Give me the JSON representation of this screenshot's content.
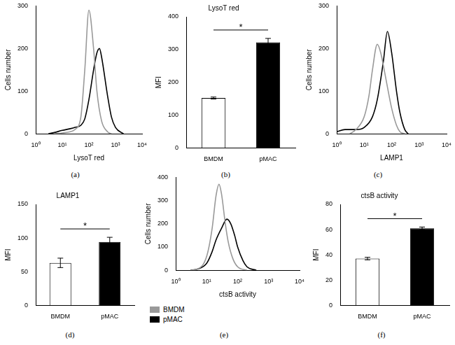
{
  "chart_data": [
    {
      "type": "line",
      "caption": "(a)",
      "x_label": "LysoT red",
      "y_label": "Cells number",
      "log": "x",
      "grid": false,
      "xlim": [
        1,
        10000
      ],
      "xticks": [
        {
          "value": 1,
          "label": "10⁰"
        },
        {
          "value": 10,
          "label": "10¹"
        },
        {
          "value": 100,
          "label": "10²"
        },
        {
          "value": 1000,
          "label": "10³"
        },
        {
          "value": 10000,
          "label": "10⁴"
        }
      ],
      "ylim": [
        0,
        300
      ],
      "yticks": [
        0,
        100,
        200,
        300
      ],
      "series": [
        {
          "name": "BMDM",
          "color": "#999999",
          "x": [
            5,
            10,
            20,
            30,
            50,
            70,
            100,
            150,
            200,
            300,
            500,
            700
          ],
          "values": [
            0,
            2,
            5,
            10,
            40,
            150,
            290,
            200,
            100,
            30,
            5,
            0
          ]
        },
        {
          "name": "pMAC",
          "color": "#000000",
          "x": [
            3,
            5,
            10,
            20,
            30,
            50,
            70,
            100,
            150,
            200,
            250,
            300,
            500,
            700,
            1000,
            2000
          ],
          "values": [
            0,
            3,
            8,
            12,
            15,
            20,
            35,
            80,
            150,
            190,
            200,
            180,
            90,
            40,
            15,
            0
          ]
        }
      ]
    },
    {
      "type": "bar",
      "caption": "(b)",
      "title": "LysoT red",
      "y_label": "MFI",
      "grid": false,
      "categories": [
        "BMDM",
        "pMAC"
      ],
      "values": [
        152,
        322
      ],
      "errors": [
        3,
        12
      ],
      "colors": [
        "#ffffff",
        "#000000"
      ],
      "ylim": [
        0,
        400
      ],
      "yticks": [
        0,
        100,
        200,
        300,
        400
      ],
      "annotations": [
        {
          "text": "*"
        }
      ]
    },
    {
      "type": "line",
      "caption": "(c)",
      "x_label": "LAMP1",
      "y_label": "Cells number",
      "log": "x",
      "grid": false,
      "xlim": [
        1,
        10000
      ],
      "xticks": [
        {
          "value": 1,
          "label": "10⁰"
        },
        {
          "value": 10,
          "label": "10¹"
        },
        {
          "value": 100,
          "label": "10²"
        },
        {
          "value": 1000,
          "label": "10³"
        },
        {
          "value": 10000,
          "label": "10⁴"
        }
      ],
      "ylim": [
        0,
        300
      ],
      "yticks": [
        0,
        100,
        200,
        300
      ],
      "series": [
        {
          "name": "BMDM",
          "color": "#999999",
          "x": [
            3,
            5,
            10,
            15,
            20,
            30,
            40,
            50,
            70,
            100,
            150,
            200,
            300
          ],
          "values": [
            0,
            10,
            40,
            90,
            150,
            210,
            190,
            160,
            110,
            60,
            20,
            5,
            0
          ]
        },
        {
          "name": "pMAC",
          "color": "#000000",
          "x": [
            1,
            2,
            5,
            10,
            20,
            30,
            50,
            70,
            100,
            150,
            200,
            300,
            400
          ],
          "values": [
            5,
            10,
            10,
            15,
            40,
            80,
            170,
            240,
            190,
            100,
            50,
            10,
            0
          ]
        }
      ]
    },
    {
      "type": "bar",
      "caption": "(d)",
      "title": "LAMP1",
      "y_label": "MFI",
      "grid": false,
      "categories": [
        "BMDM",
        "pMAC"
      ],
      "values": [
        63,
        94
      ],
      "errors": [
        7,
        7
      ],
      "colors": [
        "#ffffff",
        "#000000"
      ],
      "ylim": [
        0,
        150
      ],
      "yticks": [
        0,
        50,
        100,
        150
      ],
      "annotations": [
        {
          "text": "*"
        }
      ]
    },
    {
      "type": "line",
      "caption": "(e)",
      "x_label": "ctsB activity",
      "y_label": "Cells number",
      "log": "x",
      "grid": false,
      "legend": "bottom",
      "xlim": [
        1,
        10000
      ],
      "xticks": [
        {
          "value": 1,
          "label": "10⁰"
        },
        {
          "value": 10,
          "label": "10¹"
        },
        {
          "value": 100,
          "label": "10²"
        },
        {
          "value": 1000,
          "label": "10³"
        },
        {
          "value": 10000,
          "label": "10⁴"
        }
      ],
      "ylim": [
        0,
        400
      ],
      "yticks": [
        0,
        100,
        200,
        300,
        400
      ],
      "series": [
        {
          "name": "BMDM",
          "color": "#999999",
          "x": [
            3,
            5,
            10,
            15,
            20,
            25,
            30,
            40,
            50,
            70,
            100,
            200
          ],
          "values": [
            0,
            5,
            60,
            180,
            320,
            370,
            330,
            200,
            120,
            50,
            15,
            0
          ]
        },
        {
          "name": "pMAC",
          "color": "#000000",
          "x": [
            3,
            5,
            10,
            15,
            20,
            30,
            45,
            60,
            80,
            100,
            150,
            200,
            400
          ],
          "values": [
            0,
            5,
            30,
            80,
            130,
            180,
            220,
            200,
            150,
            100,
            40,
            15,
            0
          ]
        }
      ]
    },
    {
      "type": "bar",
      "caption": "(f)",
      "title": "ctsB activity",
      "y_label": "MFI",
      "grid": false,
      "categories": [
        "BMDM",
        "pMAC"
      ],
      "values": [
        37,
        61
      ],
      "errors": [
        1,
        1
      ],
      "colors": [
        "#ffffff",
        "#000000"
      ],
      "ylim": [
        0,
        80
      ],
      "yticks": [
        0,
        20,
        40,
        60,
        80
      ],
      "annotations": [
        {
          "text": "*"
        }
      ]
    }
  ]
}
